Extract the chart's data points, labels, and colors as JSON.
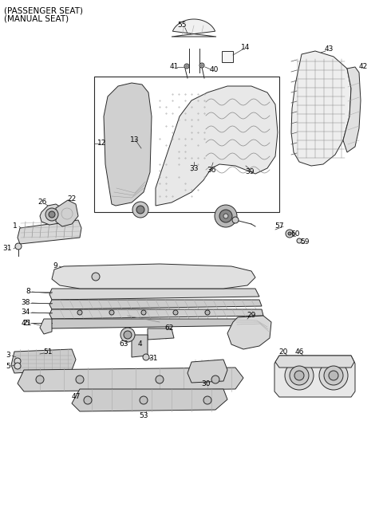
{
  "bg_color": "#ffffff",
  "line_color": "#2a2a2a",
  "header_lines": [
    "(PASSENGER SEAT)",
    "(MANUAL SEAT)"
  ],
  "lw": 0.7,
  "fill_main": "#e8e8e8",
  "fill_light": "#f0f0f0",
  "fill_dark": "#cccccc",
  "grid_color": "#666666",
  "label_fs": 6.5
}
